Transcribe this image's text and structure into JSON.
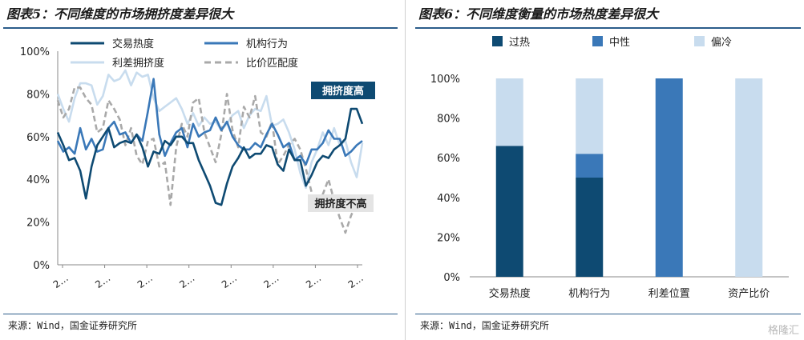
{
  "left": {
    "title": "图表5：不同维度的市场拥挤度差异很大",
    "source": "来源：Wind，国金证券研究所",
    "annotation_high": "拥挤度高",
    "annotation_low": "拥挤度不高"
  },
  "right": {
    "title": "图表6：不同维度衡量的市场热度差异很大",
    "source": "来源：Wind，国金证券研究所"
  },
  "watermark": "格隆汇",
  "chart_data": [
    {
      "type": "line",
      "ylim": [
        0,
        100
      ],
      "yticks": [
        "0%",
        "20%",
        "40%",
        "60%",
        "80%",
        "100%"
      ],
      "xticks": [
        "2…",
        "2…",
        "2…",
        "2…",
        "2…",
        "2…",
        "2…",
        "2…"
      ],
      "legend_position": "top",
      "colors": {
        "交易热度": "#0e4a72",
        "机构行为": "#3a78b8",
        "利差拥挤度": "#c8dcee",
        "比价匹配度": "#a9a9a9"
      },
      "series": [
        {
          "name": "交易热度",
          "values": [
            62,
            56,
            49,
            50,
            44,
            31,
            46,
            56,
            60,
            64,
            55,
            57,
            58,
            57,
            61,
            55,
            46,
            53,
            52,
            58,
            56,
            60,
            60,
            57,
            57,
            49,
            43,
            37,
            29,
            28,
            38,
            46,
            50,
            55,
            50,
            52,
            52,
            56,
            55,
            47,
            44,
            54,
            49,
            49,
            37,
            42,
            48,
            51,
            50,
            54,
            56,
            59,
            73,
            73,
            66
          ]
        },
        {
          "name": "机构行为",
          "values": [
            58,
            53,
            55,
            52,
            64,
            54,
            59,
            53,
            54,
            64,
            67,
            61,
            62,
            57,
            61,
            58,
            72,
            87,
            61,
            51,
            57,
            62,
            64,
            55,
            66,
            60,
            62,
            63,
            69,
            63,
            67,
            60,
            56,
            54,
            54,
            57,
            55,
            61,
            66,
            61,
            55,
            57,
            49,
            51,
            47,
            54,
            54,
            57,
            63,
            59,
            59,
            51,
            53,
            56,
            58
          ]
        },
        {
          "name": "利差拥挤度",
          "values": [
            80,
            73,
            67,
            78,
            85,
            85,
            84,
            75,
            79,
            89,
            86,
            87,
            91,
            84,
            90,
            88,
            89,
            78,
            72,
            74,
            76,
            78,
            73,
            66,
            71,
            65,
            69,
            66,
            67,
            63,
            66,
            70,
            72,
            64,
            70,
            73,
            72,
            79,
            65,
            66,
            68,
            62,
            54,
            43,
            36,
            48,
            54,
            62,
            56,
            64,
            56,
            58,
            48,
            41,
            57
          ]
        },
        {
          "name": "比价匹配度",
          "values": [
            77,
            69,
            73,
            83,
            83,
            78,
            75,
            62,
            64,
            77,
            73,
            68,
            56,
            64,
            51,
            47,
            58,
            59,
            46,
            48,
            28,
            55,
            66,
            60,
            76,
            78,
            62,
            55,
            48,
            61,
            80,
            63,
            55,
            74,
            69,
            79,
            62,
            60,
            67,
            47,
            51,
            56,
            59,
            54,
            45,
            34,
            27,
            33,
            40,
            30,
            22,
            15,
            23,
            29,
            25
          ]
        }
      ]
    },
    {
      "type": "bar",
      "stacked": true,
      "categories": [
        "交易热度",
        "机构行为",
        "利差位置",
        "资产比价"
      ],
      "yticks": [
        "0%",
        "20%",
        "40%",
        "60%",
        "80%",
        "100%"
      ],
      "ylim": [
        0,
        100
      ],
      "legend_position": "top",
      "colors": {
        "过热": "#0e4a72",
        "中性": "#3a78b8",
        "偏冷": "#c8dcee"
      },
      "series": [
        {
          "name": "过热",
          "values": [
            66,
            50,
            0,
            0
          ]
        },
        {
          "name": "中性",
          "values": [
            0,
            12,
            100,
            0
          ]
        },
        {
          "name": "偏冷",
          "values": [
            34,
            38,
            0,
            100
          ]
        }
      ]
    }
  ]
}
